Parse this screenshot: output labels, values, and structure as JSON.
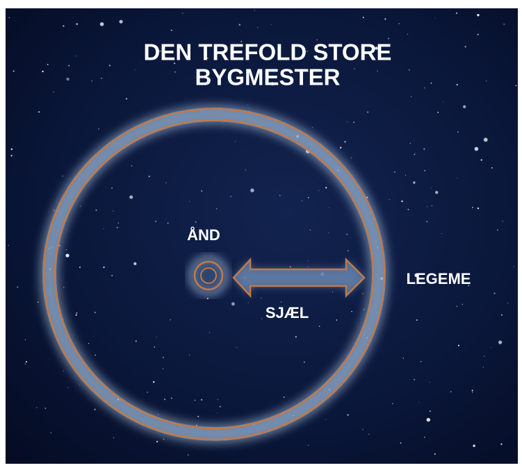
{
  "title": {
    "lines": [
      "DEN TREFOLD STORE",
      "BYGMESTER"
    ]
  },
  "nodes": [
    {
      "label": "ÅND"
    },
    {
      "label": "SJÆL"
    },
    {
      "label": "LEGEME"
    }
  ]
}
